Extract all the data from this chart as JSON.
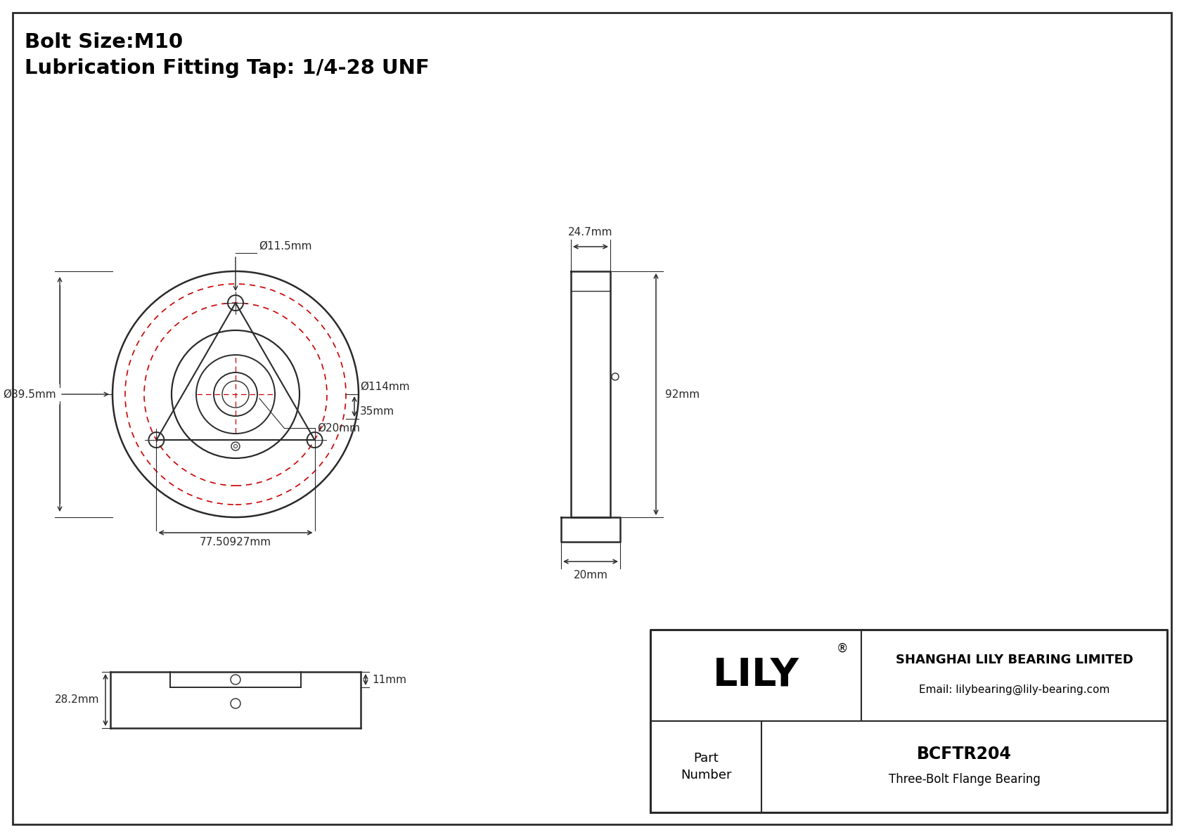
{
  "title_line1": "Bolt Size:M10",
  "title_line2": "Lubrication Fitting Tap: 1/4-28 UNF",
  "bg": "#ffffff",
  "lc": "#2a2a2a",
  "rc": "#cc0000",
  "company": "SHANGHAI LILY BEARING LIMITED",
  "email": "Email: lilybearing@lily-bearing.com",
  "part_num": "BCFTR204",
  "part_desc": "Three-Bolt Flange Bearing",
  "logo": "LILY",
  "d_bolt_hole": "Ø11.5mm",
  "d_flange": "Ø89.5mm",
  "d_outer_dashed": "Ø114mm",
  "d_35": "35mm",
  "d_shaft": "Ø20mm",
  "d_spacing": "77.50927mm",
  "d_side_w": "24.7mm",
  "d_side_h": "92mm",
  "d_side_base": "20mm",
  "d_bot_h": "28.2mm",
  "d_bot_step": "11mm"
}
